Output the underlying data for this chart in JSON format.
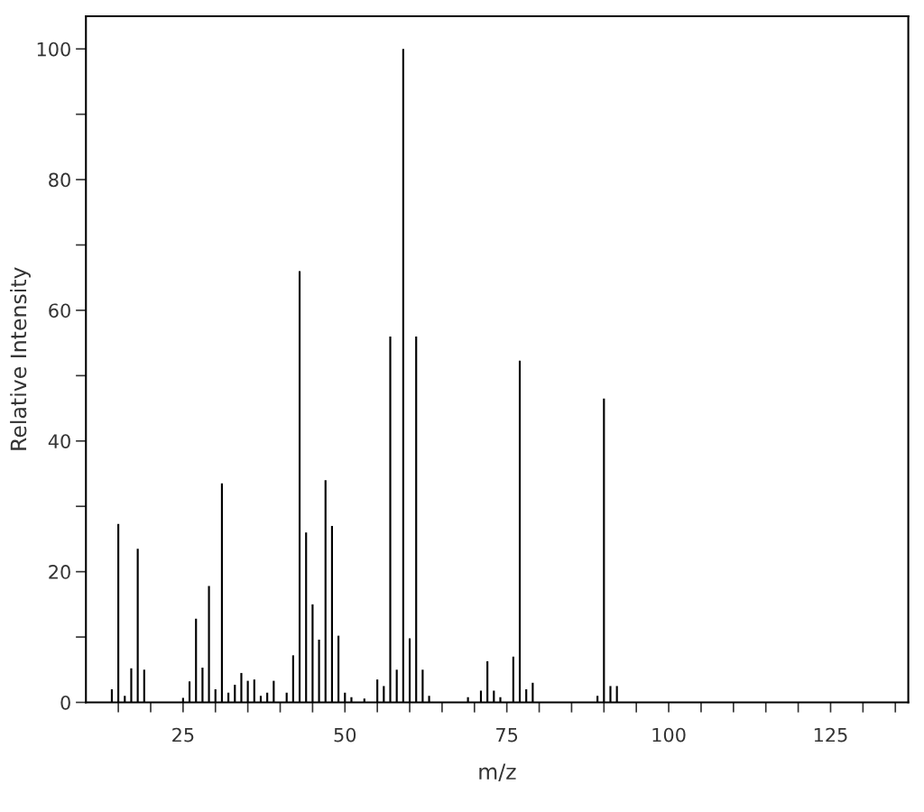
{
  "chart_data": {
    "type": "bar",
    "xlabel": "m/z",
    "ylabel": "Relative Intensity",
    "x": [
      14,
      15,
      16,
      17,
      18,
      19,
      25,
      26,
      27,
      28,
      29,
      30,
      31,
      32,
      33,
      34,
      35,
      36,
      37,
      38,
      39,
      41,
      42,
      43,
      44,
      45,
      46,
      47,
      48,
      49,
      50,
      51,
      53,
      55,
      56,
      57,
      58,
      59,
      60,
      61,
      62,
      63,
      69,
      71,
      72,
      73,
      74,
      76,
      77,
      78,
      79,
      89,
      90,
      91,
      92
    ],
    "values": [
      2,
      27.3,
      1,
      5.2,
      23.5,
      5,
      0.7,
      3.2,
      12.8,
      5.3,
      17.8,
      2,
      33.5,
      1.5,
      2.7,
      4.5,
      3.3,
      3.5,
      1,
      1.5,
      3.3,
      1.5,
      7.2,
      66,
      26,
      15,
      9.6,
      34,
      27,
      10.2,
      1.5,
      0.8,
      0.6,
      3.5,
      2.5,
      56,
      5,
      100,
      9.8,
      56,
      5,
      1,
      0.8,
      1.8,
      6.3,
      1.8,
      0.8,
      7,
      52.3,
      2,
      3,
      1,
      46.5,
      2.5,
      2.5
    ],
    "color": "#000000",
    "xlim": [
      10,
      137
    ],
    "ylim": [
      0,
      105
    ],
    "xticks": [
      {
        "value": 15,
        "label": null
      },
      {
        "value": 20,
        "label": null
      },
      25,
      {
        "value": 30,
        "label": null
      },
      {
        "value": 35,
        "label": null
      },
      {
        "value": 40,
        "label": null
      },
      {
        "value": 45,
        "label": null
      },
      50,
      {
        "value": 55,
        "label": null
      },
      {
        "value": 60,
        "label": null
      },
      {
        "value": 65,
        "label": null
      },
      {
        "value": 70,
        "label": null
      },
      75,
      {
        "value": 80,
        "label": null
      },
      {
        "value": 85,
        "label": null
      },
      {
        "value": 90,
        "label": null
      },
      {
        "value": 95,
        "label": null
      },
      100,
      {
        "value": 105,
        "label": null
      },
      {
        "value": 110,
        "label": null
      },
      {
        "value": 115,
        "label": null
      },
      {
        "value": 120,
        "label": null
      },
      125,
      {
        "value": 130,
        "label": null
      },
      {
        "value": 135,
        "label": null
      }
    ],
    "yticks": [
      0,
      {
        "value": 10,
        "label": null
      },
      20,
      {
        "value": 30,
        "label": null
      },
      40,
      {
        "value": 50,
        "label": null
      },
      60,
      {
        "value": 70,
        "label": null
      },
      80,
      {
        "value": 90,
        "label": null
      },
      100
    ],
    "grid": false,
    "legend": false
  }
}
